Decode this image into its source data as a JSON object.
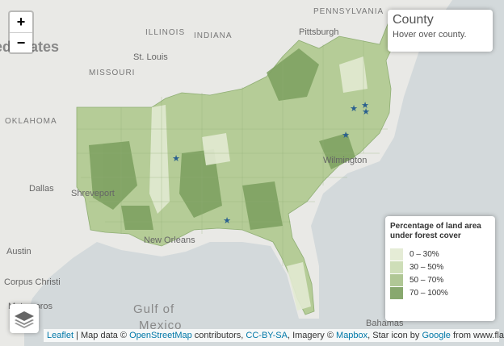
{
  "info": {
    "title": "County",
    "hint": "Hover over county."
  },
  "zoom": {
    "in": "+",
    "out": "−"
  },
  "legend": {
    "title": "Percentage of land area under forest cover",
    "items": [
      {
        "label": "0 – 30%",
        "color": "#e2ead2"
      },
      {
        "label": "30 – 50%",
        "color": "#c9dab0"
      },
      {
        "label": "50 – 70%",
        "color": "#a7c189"
      },
      {
        "label": "70 – 100%",
        "color": "#7b9f5e"
      }
    ]
  },
  "map_labels": [
    "United States",
    "PENNSYLVANIA",
    "ILLINOIS",
    "INDIANA",
    "Pittsburgh",
    "St. Louis",
    "MISSOURI",
    "OKLAHOMA",
    "Dallas",
    "Shreveport",
    "Austin",
    "Corpus Christi",
    "Matamoros",
    "Gulf of",
    "Mexico",
    "New Orleans",
    "Wilmington",
    "Bahamas"
  ],
  "attribution": [
    "Leaflet",
    " | Map data © ",
    "OpenStreetMap",
    " contributors, ",
    "CC-BY-SA",
    ", Imagery © ",
    "Mapbox",
    ", Star icon by ",
    "Google",
    " from www.flaticon.com"
  ]
}
